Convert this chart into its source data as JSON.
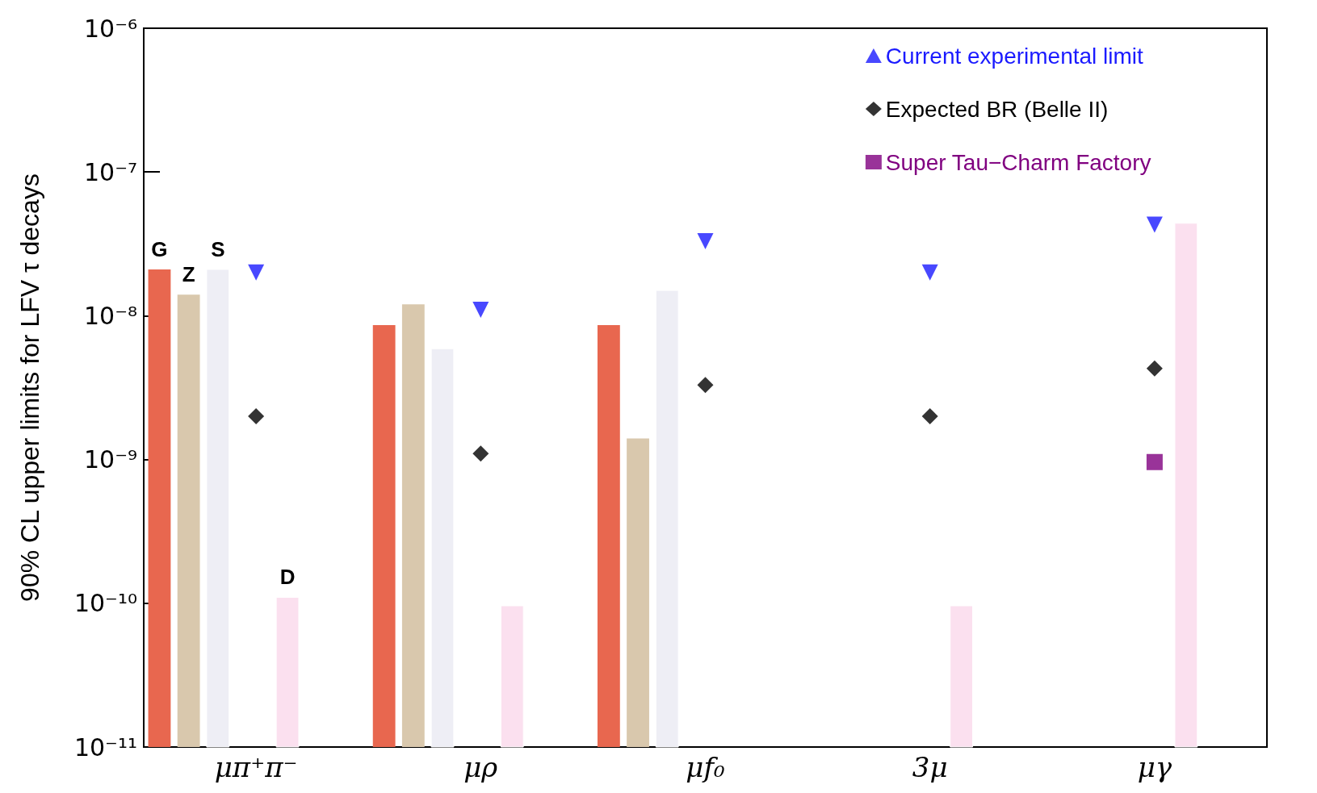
{
  "chart_data": {
    "type": "bar",
    "ylabel": "90% CL upper limits for LFV τ decays",
    "categories": [
      "μπ⁺π⁻",
      "μρ",
      "μf₀",
      "3μ",
      "μγ"
    ],
    "series": [
      {
        "color": "#e8674f",
        "values": [
          2.1e-08,
          8.6e-09,
          8.6e-09,
          null,
          null
        ]
      },
      {
        "color": "#d9c8ad",
        "values": [
          1.4e-08,
          1.2e-08,
          1.4e-09,
          null,
          null
        ]
      },
      {
        "color": "#eeeef5",
        "values": [
          2.1e-08,
          5.9e-09,
          1.5e-08,
          null,
          null
        ]
      },
      {
        "color": "#fbe0ef",
        "values": [
          1.1e-10,
          9.6e-11,
          null,
          9.6e-11,
          4.4e-08
        ]
      },
      {
        "name": "Current experimental limit",
        "type": "scatter",
        "marker": "triangle",
        "color": "#1a1aff",
        "values": [
          2e-08,
          1.1e-08,
          3.3e-08,
          2e-08,
          4.3e-08
        ]
      },
      {
        "name": "Expected BR (Belle II)",
        "type": "scatter",
        "marker": "diamond",
        "color": "#000000",
        "values": [
          2e-09,
          1.1e-09,
          3.3e-09,
          2e-09,
          4.3e-09
        ]
      },
      {
        "name": "Super Tau−Charm Factory",
        "type": "scatter",
        "marker": "square",
        "color": "#800080",
        "values": [
          null,
          null,
          null,
          null,
          9.6e-10
        ]
      }
    ],
    "annotations": [
      "G",
      "Z",
      "S",
      "D"
    ],
    "log": true,
    "ylim": [
      1e-11,
      1e-06
    ],
    "yticks": [
      {
        "value": 1e-11,
        "label": "10⁻¹¹"
      },
      {
        "value": 1e-10,
        "label": "10⁻¹⁰"
      },
      {
        "value": 1e-09,
        "label": "10⁻⁹"
      },
      {
        "value": 1e-08,
        "label": "10⁻⁸"
      },
      {
        "value": 1e-07,
        "label": "10⁻⁷"
      },
      {
        "value": 1e-06,
        "label": "10⁻⁶"
      }
    ],
    "grid": false,
    "legend": "top right"
  }
}
